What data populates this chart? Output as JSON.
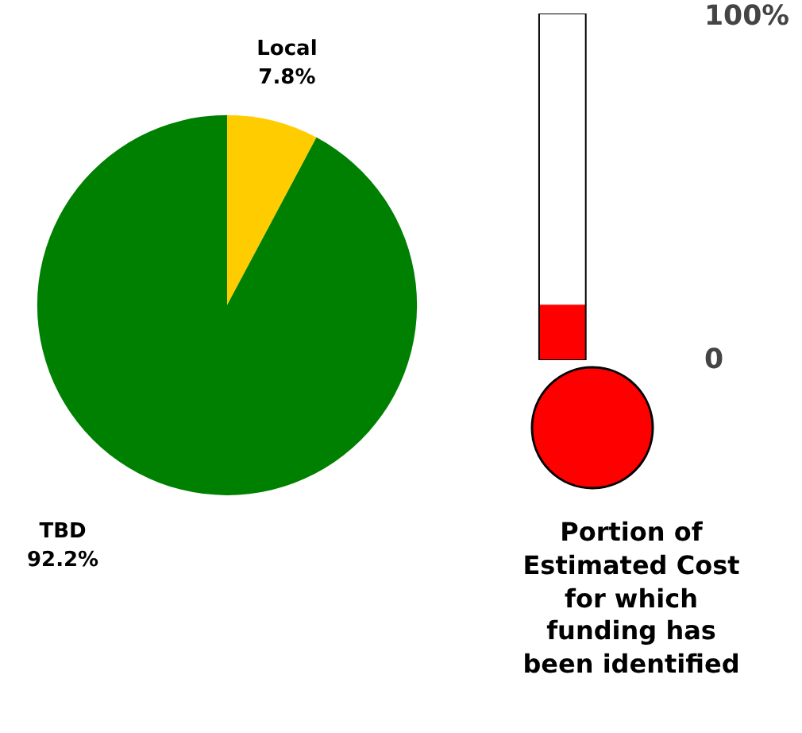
{
  "chart_data": [
    {
      "type": "pie",
      "categories": [
        "Local",
        "TBD"
      ],
      "values": [
        7.8,
        92.2
      ],
      "colors": [
        "#ffcc00",
        "#008000"
      ],
      "value_labels": [
        "7.8%",
        "92.2%"
      ]
    },
    {
      "type": "bar",
      "categories": [
        null
      ],
      "values": [
        16
      ],
      "colors": [
        "#ff0000"
      ],
      "ylim": [
        0,
        100
      ],
      "yticks": [
        0,
        {
          "value": 100,
          "label": "100%"
        }
      ],
      "xlabel": "Portion of\nEstimated Cost\nfor which\nfunding has\nbeen identified"
    }
  ]
}
